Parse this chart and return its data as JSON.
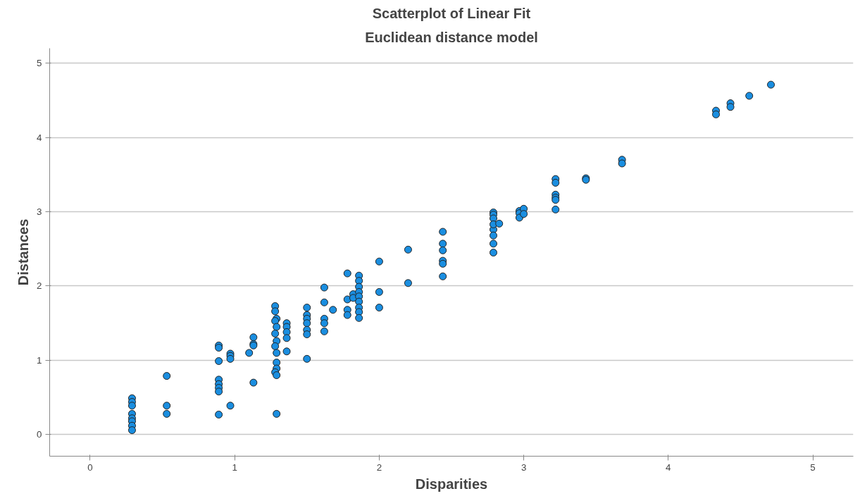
{
  "chart_data": {
    "type": "scatter",
    "title": "Scatterplot of Linear Fit",
    "subtitle": "Euclidean distance model",
    "xlabel": "Disparities",
    "ylabel": "Distances",
    "marker": "circle",
    "grid": "y",
    "xlim": [
      -0.28,
      5.28
    ],
    "ylim": [
      -0.29,
      5.2
    ],
    "xticks": [
      0,
      1,
      2,
      3,
      4,
      5
    ],
    "yticks": [
      0,
      1,
      2,
      3,
      4,
      5
    ],
    "series": [
      {
        "color": "#1a8ee0",
        "x": [
          0.29,
          0.29,
          0.29,
          0.29,
          0.29,
          0.29,
          0.29,
          0.29,
          0.53,
          0.53,
          0.53,
          0.89,
          0.89,
          0.89,
          0.89,
          0.89,
          0.89,
          0.89,
          0.89,
          0.97,
          0.97,
          0.97,
          0.97,
          1.1,
          1.13,
          1.13,
          1.13,
          1.13,
          1.28,
          1.28,
          1.29,
          1.28,
          1.29,
          1.28,
          1.29,
          1.28,
          1.29,
          1.29,
          1.29,
          1.28,
          1.29,
          1.29,
          1.36,
          1.36,
          1.36,
          1.36,
          1.36,
          1.5,
          1.5,
          1.5,
          1.5,
          1.5,
          1.5,
          1.5,
          1.62,
          1.62,
          1.62,
          1.62,
          1.62,
          1.68,
          1.78,
          1.78,
          1.78,
          1.78,
          1.82,
          1.82,
          1.86,
          1.86,
          1.86,
          1.86,
          1.86,
          1.86,
          1.86,
          1.86,
          1.86,
          2.0,
          2.0,
          2.0,
          2.2,
          2.2,
          2.44,
          2.44,
          2.44,
          2.44,
          2.44,
          2.44,
          2.79,
          2.79,
          2.79,
          2.79,
          2.79,
          2.79,
          2.79,
          2.79,
          2.83,
          2.97,
          2.97,
          2.97,
          3.0,
          3.0,
          3.22,
          3.22,
          3.22,
          3.22,
          3.22,
          3.22,
          3.43,
          3.43,
          3.68,
          3.68,
          4.33,
          4.33,
          4.43,
          4.43,
          4.56,
          4.71
        ],
        "values": [
          0.49,
          0.44,
          0.39,
          0.28,
          0.22,
          0.18,
          0.12,
          0.06,
          0.79,
          0.39,
          0.28,
          1.2,
          1.17,
          0.99,
          0.74,
          0.68,
          0.63,
          0.58,
          0.27,
          1.09,
          1.06,
          1.02,
          0.39,
          1.1,
          1.31,
          1.22,
          1.2,
          0.7,
          1.73,
          1.66,
          1.56,
          1.53,
          1.45,
          1.36,
          1.26,
          1.19,
          1.1,
          0.97,
          0.89,
          0.84,
          0.8,
          0.28,
          1.5,
          1.45,
          1.38,
          1.3,
          1.12,
          1.71,
          1.61,
          1.56,
          1.5,
          1.41,
          1.35,
          1.02,
          1.98,
          1.78,
          1.56,
          1.5,
          1.39,
          1.68,
          2.17,
          1.82,
          1.68,
          1.61,
          1.89,
          1.84,
          2.14,
          2.07,
          1.99,
          1.92,
          1.86,
          1.79,
          1.71,
          1.65,
          1.57,
          2.33,
          1.92,
          1.71,
          2.49,
          2.04,
          2.73,
          2.57,
          2.48,
          2.34,
          2.3,
          2.13,
          2.99,
          2.96,
          2.91,
          2.76,
          2.68,
          2.57,
          2.45,
          2.83,
          2.84,
          3.01,
          2.98,
          2.92,
          3.04,
          2.97,
          3.44,
          3.39,
          3.23,
          3.19,
          3.16,
          3.03,
          3.45,
          3.43,
          3.7,
          3.65,
          4.36,
          4.31,
          4.46,
          4.41,
          4.56,
          4.71
        ]
      }
    ]
  }
}
